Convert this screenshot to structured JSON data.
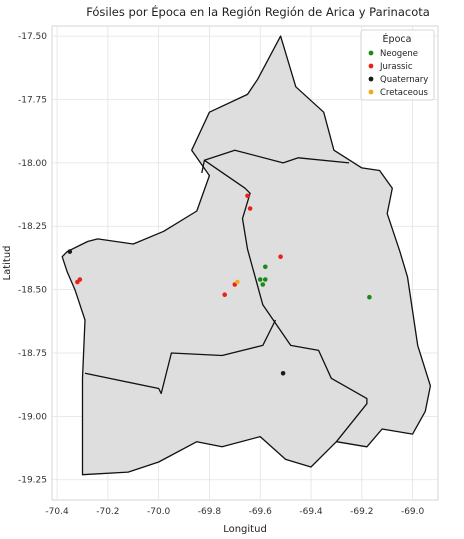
{
  "chart_data": {
    "type": "scatter",
    "title": "Fósiles por Época en la Región Región de Arica y Parinacota",
    "xlabel": "Longitud",
    "ylabel": "Latitud",
    "xlim": [
      -70.42,
      -68.9
    ],
    "ylim": [
      -19.33,
      -17.46
    ],
    "x_ticks": [
      "-70.4",
      "-70.2",
      "-70.0",
      "-69.8",
      "-69.6",
      "-69.4",
      "-69.2",
      "-69.0"
    ],
    "x_tick_values": [
      -70.4,
      -70.2,
      -70.0,
      -69.8,
      -69.6,
      -69.4,
      -69.2,
      -69.0
    ],
    "y_ticks": [
      "-17.50",
      "-17.75",
      "-18.00",
      "-18.25",
      "-18.50",
      "-18.75",
      "-19.00",
      "-19.25"
    ],
    "y_tick_values": [
      -17.5,
      -17.75,
      -18.0,
      -18.25,
      -18.5,
      -18.75,
      -19.0,
      -19.25
    ],
    "grid": true,
    "legend": {
      "title": "Época",
      "position": "top-right"
    },
    "series": [
      {
        "name": "Neogene",
        "color": "#1a8a1a",
        "points": [
          [
            -69.58,
            -18.41
          ],
          [
            -69.6,
            -18.46
          ],
          [
            -69.58,
            -18.46
          ],
          [
            -69.59,
            -18.48
          ],
          [
            -69.17,
            -18.53
          ]
        ]
      },
      {
        "name": "Jurassic",
        "color": "#e8221b",
        "points": [
          [
            -69.65,
            -18.13
          ],
          [
            -69.64,
            -18.18
          ],
          [
            -69.52,
            -18.37
          ],
          [
            -69.7,
            -18.48
          ],
          [
            -69.74,
            -18.52
          ],
          [
            -70.31,
            -18.46
          ],
          [
            -70.32,
            -18.47
          ]
        ]
      },
      {
        "name": "Quaternary",
        "color": "#1a1a1a",
        "points": [
          [
            -70.35,
            -18.35
          ],
          [
            -69.51,
            -18.83
          ]
        ]
      },
      {
        "name": "Cretaceous",
        "color": "#f2a91c",
        "points": [
          [
            -69.69,
            -18.47
          ]
        ]
      }
    ],
    "map": {
      "fill": "#dedede",
      "stroke": "#111111",
      "outline": [
        [
          -70.36,
          -18.35
        ],
        [
          -70.28,
          -18.31
        ],
        [
          -70.24,
          -18.3
        ],
        [
          -70.1,
          -18.32
        ],
        [
          -69.98,
          -18.27
        ],
        [
          -69.85,
          -18.19
        ],
        [
          -69.8,
          -18.05
        ],
        [
          -69.87,
          -17.95
        ],
        [
          -69.8,
          -17.8
        ],
        [
          -69.65,
          -17.73
        ],
        [
          -69.61,
          -17.67
        ],
        [
          -69.52,
          -17.5
        ],
        [
          -69.46,
          -17.7
        ],
        [
          -69.35,
          -17.8
        ],
        [
          -69.31,
          -17.95
        ],
        [
          -69.2,
          -18.02
        ],
        [
          -69.13,
          -18.03
        ],
        [
          -69.08,
          -18.1
        ],
        [
          -69.1,
          -18.2
        ],
        [
          -69.05,
          -18.35
        ],
        [
          -69.02,
          -18.45
        ],
        [
          -68.98,
          -18.72
        ],
        [
          -68.93,
          -18.88
        ],
        [
          -68.95,
          -18.98
        ],
        [
          -69.0,
          -19.07
        ],
        [
          -69.12,
          -19.05
        ],
        [
          -69.18,
          -19.12
        ],
        [
          -69.3,
          -19.1
        ],
        [
          -69.4,
          -19.2
        ],
        [
          -69.5,
          -19.17
        ],
        [
          -69.6,
          -19.08
        ],
        [
          -69.75,
          -19.12
        ],
        [
          -69.85,
          -19.1
        ],
        [
          -70.0,
          -19.18
        ],
        [
          -70.12,
          -19.22
        ],
        [
          -70.3,
          -19.23
        ],
        [
          -70.3,
          -19.05
        ],
        [
          -70.3,
          -18.85
        ],
        [
          -70.29,
          -18.62
        ],
        [
          -70.33,
          -18.5
        ],
        [
          -70.36,
          -18.43
        ],
        [
          -70.38,
          -18.37
        ]
      ],
      "borders": [
        [
          [
            -69.83,
            -18.04
          ],
          [
            -69.82,
            -17.99
          ],
          [
            -69.66,
            -18.1
          ],
          [
            -69.64,
            -18.12
          ],
          [
            -69.67,
            -18.22
          ],
          [
            -69.65,
            -18.34
          ],
          [
            -69.59,
            -18.56
          ],
          [
            -69.48,
            -18.72
          ],
          [
            -69.37,
            -18.74
          ],
          [
            -69.32,
            -18.85
          ],
          [
            -69.18,
            -18.93
          ],
          [
            -69.18,
            -18.95
          ],
          [
            -69.3,
            -19.1
          ]
        ],
        [
          [
            -69.82,
            -17.99
          ],
          [
            -69.7,
            -17.95
          ],
          [
            -69.51,
            -18.0
          ],
          [
            -69.45,
            -17.98
          ],
          [
            -69.25,
            -18.0
          ]
        ],
        [
          [
            -70.29,
            -18.83
          ],
          [
            -70.0,
            -18.89
          ],
          [
            -69.99,
            -18.91
          ],
          [
            -69.95,
            -18.75
          ],
          [
            -69.75,
            -18.76
          ],
          [
            -69.59,
            -18.72
          ],
          [
            -69.54,
            -18.62
          ]
        ]
      ]
    }
  }
}
